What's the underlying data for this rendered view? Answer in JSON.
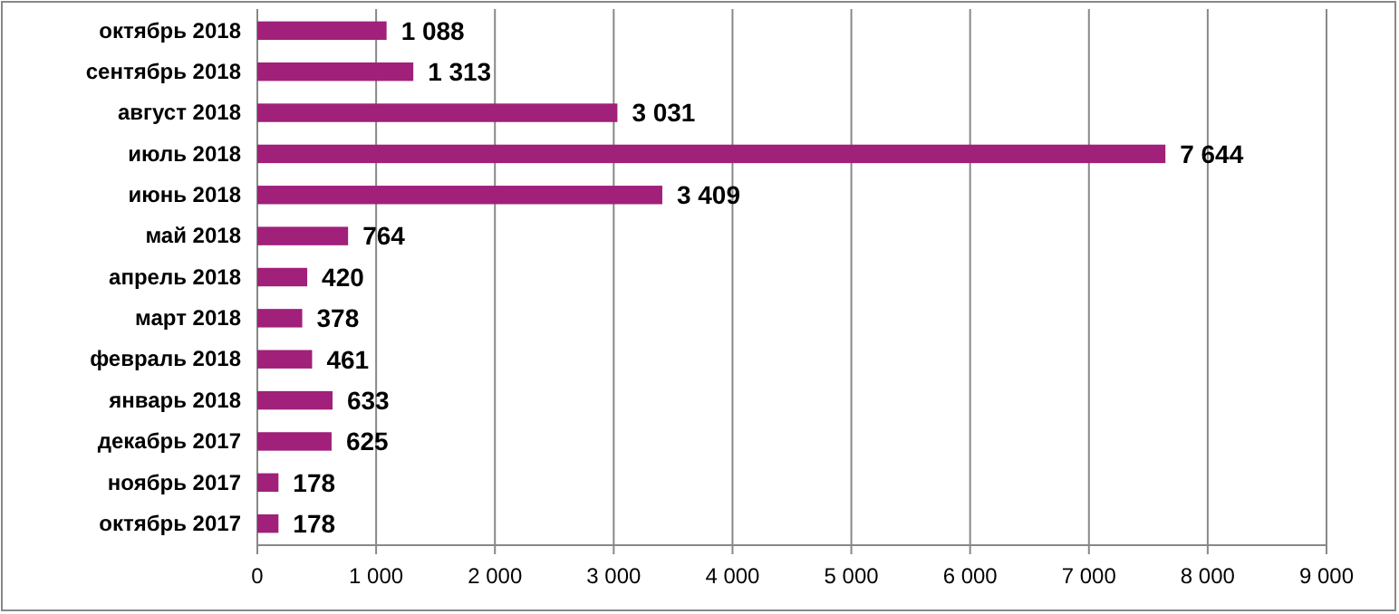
{
  "chart_data": {
    "type": "bar",
    "orientation": "horizontal",
    "categories": [
      "октябрь 2018",
      "сентябрь 2018",
      "август 2018",
      "июль 2018",
      "июнь 2018",
      "май 2018",
      "апрель 2018",
      "март 2018",
      "февраль 2018",
      "январь 2018",
      "декабрь 2017",
      "ноябрь 2017",
      "октябрь 2017"
    ],
    "values": [
      1088,
      1313,
      3031,
      7644,
      3409,
      764,
      420,
      378,
      461,
      633,
      625,
      178,
      178
    ],
    "value_labels": [
      "1 088",
      "1 313",
      "3 031",
      "7 644",
      "3 409",
      "764",
      "420",
      "378",
      "461",
      "633",
      "625",
      "178",
      "178"
    ],
    "color": "#a0207a",
    "xlim": [
      0,
      9000
    ],
    "xticks": [
      {
        "value": 0,
        "label": "0"
      },
      {
        "value": 1000,
        "label": "1 000"
      },
      {
        "value": 2000,
        "label": "2 000"
      },
      {
        "value": 3000,
        "label": "3 000"
      },
      {
        "value": 4000,
        "label": "4 000"
      },
      {
        "value": 5000,
        "label": "5 000"
      },
      {
        "value": 6000,
        "label": "6 000"
      },
      {
        "value": 7000,
        "label": "7 000"
      },
      {
        "value": 8000,
        "label": "8 000"
      },
      {
        "value": 9000,
        "label": "9 000"
      }
    ],
    "grid": "x"
  }
}
